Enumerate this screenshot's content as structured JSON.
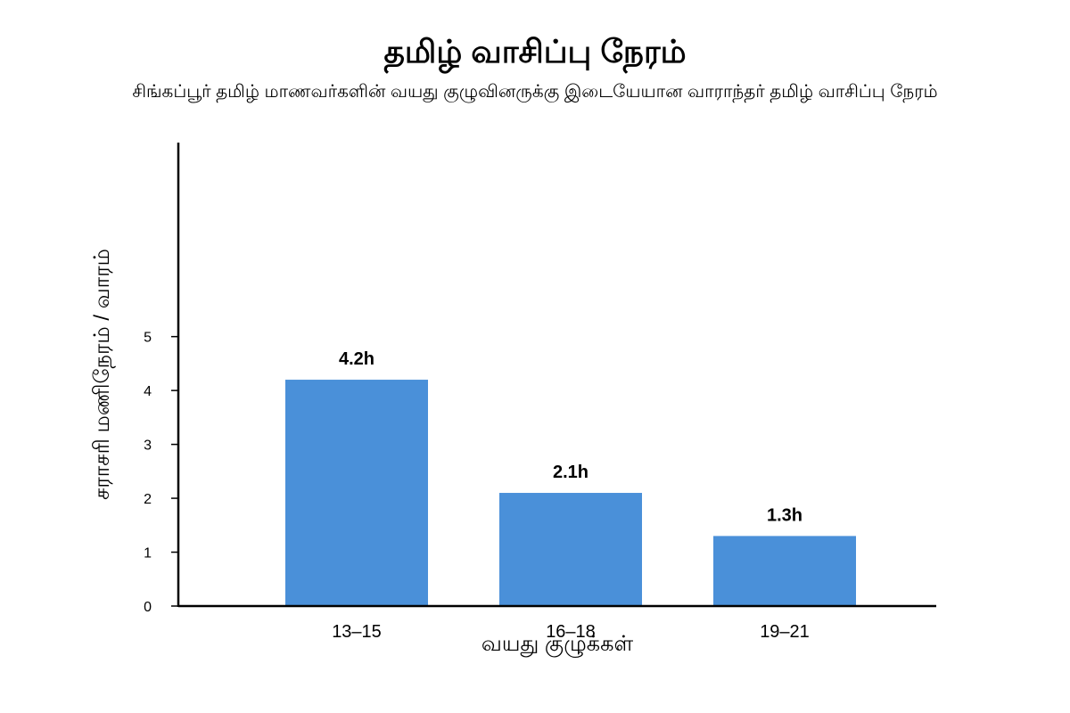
{
  "chart_data": {
    "type": "bar",
    "title": "தமிழ் வாசிப்பு நேரம்",
    "subtitle": "சிங்கப்பூர் தமிழ் மாணவர்களின் வயது குழுவினருக்கு இடையேயான வாராந்தர் தமிழ் வாசிப்பு நேரம்",
    "xlabel": "வயது குழுக்கள்",
    "ylabel": "சராசரி மணிநேரம் / வாரம்",
    "categories": [
      "13–15",
      "16–18",
      "19–21"
    ],
    "values": [
      4.2,
      2.1,
      1.3
    ],
    "data_labels": [
      "4.2h",
      "2.1h",
      "1.3h"
    ],
    "yticks": [
      0,
      1,
      2,
      3,
      4,
      5
    ],
    "ylim": [
      0,
      8.6
    ],
    "bar_color": "#4a90d9",
    "grid": false,
    "legend": "none"
  }
}
